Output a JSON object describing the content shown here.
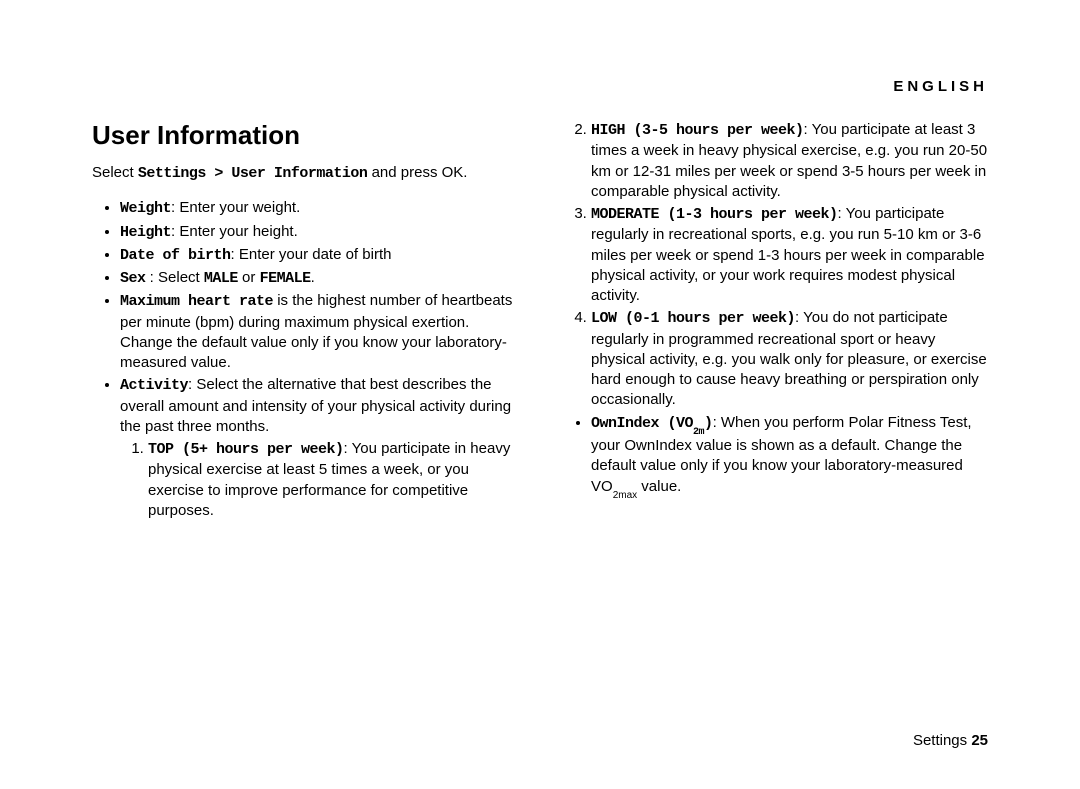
{
  "header": {
    "language": "ENGLISH"
  },
  "left": {
    "title": "User Information",
    "intro_pre": "Select ",
    "intro_bold": "Settings > User Information",
    "intro_post": " and press OK.",
    "bullets": {
      "weight": {
        "label": "Weight",
        "text": ": Enter your weight."
      },
      "height": {
        "label": "Height",
        "text": ": Enter your height."
      },
      "dob": {
        "label": "Date of birth",
        "text": ": Enter your date of birth"
      },
      "sex": {
        "label": "Sex",
        "mid": " : Select ",
        "male": "MALE",
        "or": " or ",
        "female": "FEMALE",
        "end": "."
      },
      "maxhr": {
        "label": "Maximum heart rate",
        "text": " is the highest number of heartbeats per minute (bpm) during maximum physical exertion. Change the default value only if you know your laboratory-measured value."
      },
      "activity": {
        "label": "Activity",
        "text": ": Select the alternative that best describes the overall amount and intensity of your physical activity during the past three months."
      }
    },
    "activity_levels": {
      "top": {
        "label": "TOP (5+ hours per week)",
        "text": ": You participate in heavy physical exercise at least 5 times a week, or you exercise to improve performance for competitive purposes."
      }
    }
  },
  "right": {
    "levels": {
      "high": {
        "label": "HIGH (3-5 hours per week)",
        "text": ": You participate at least 3 times a week in heavy physical exercise, e.g. you run 20-50 km or 12-31 miles per week or spend 3-5 hours per week in comparable physical activity."
      },
      "moderate": {
        "label": "MODERATE (1-3 hours per week)",
        "text": ": You participate regularly in recreational sports, e.g. you run 5-10 km or 3-6 miles per week or spend 1-3 hours per week in comparable physical activity, or your work requires modest physical activity."
      },
      "low": {
        "label": "LOW (0-1 hours per week)",
        "text": ": You do not participate regularly in programmed recreational sport or heavy physical activity, e.g. you walk only for pleasure, or exercise hard enough to cause heavy breathing or perspiration only occasionally."
      }
    },
    "ownindex": {
      "label_pre": "OwnIndex (VO",
      "label_sub": "2m",
      "label_post": ")",
      "text_pre": ": When you perform Polar Fitness Test, your OwnIndex value is shown as a default. Change the default value only if you know your laboratory-measured VO",
      "text_sub": "2max",
      "text_post": " value."
    }
  },
  "footer": {
    "label": "Settings ",
    "page": "25"
  }
}
